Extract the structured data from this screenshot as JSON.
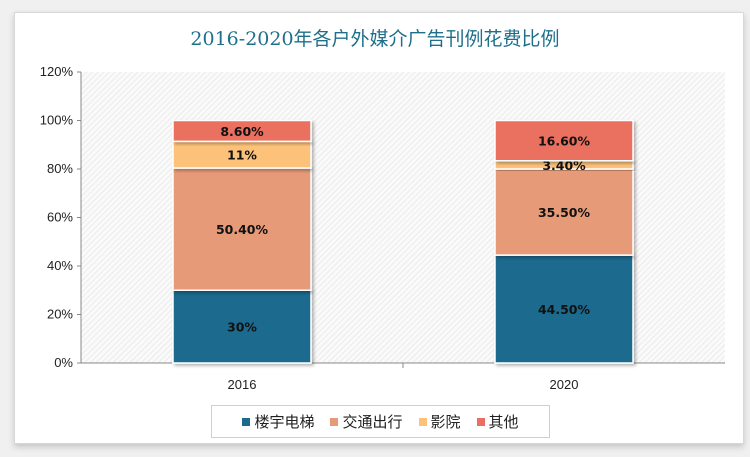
{
  "chart_data": {
    "type": "bar",
    "stacked": true,
    "title": "2016-2020年各户外媒介广告刊例花费比例",
    "categories": [
      "2016",
      "2020"
    ],
    "series": [
      {
        "name": "楼宇电梯",
        "values": [
          30,
          44.5
        ],
        "labels": [
          "30%",
          "44.50%"
        ],
        "color": "#1c6a8e"
      },
      {
        "name": "交通出行",
        "values": [
          50.4,
          35.5
        ],
        "labels": [
          "50.40%",
          "35.50%"
        ],
        "color": "#e69a78"
      },
      {
        "name": "影院",
        "values": [
          11,
          3.4
        ],
        "labels": [
          "11%",
          "3.40%"
        ],
        "color": "#fdc27a"
      },
      {
        "name": "其他",
        "values": [
          8.6,
          16.6
        ],
        "labels": [
          "8.60%",
          "16.60%"
        ],
        "color": "#ea6f60"
      }
    ],
    "ylim": [
      0,
      120
    ],
    "yticks": [
      "0%",
      "20%",
      "40%",
      "60%",
      "80%",
      "100%",
      "120%"
    ],
    "legend": "bottom",
    "grid": false
  }
}
